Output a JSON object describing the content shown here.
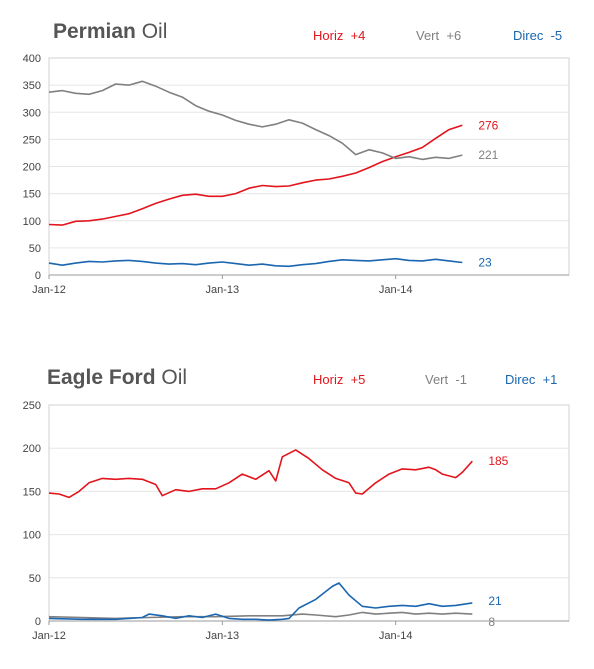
{
  "colors": {
    "horiz": "#e3141c",
    "vert": "#808080",
    "direc": "#1a66b0",
    "grid": "#e6e6e6",
    "axis": "#999999"
  },
  "chart_data": [
    {
      "type": "line",
      "title_bold": "Permian",
      "title_rest": "Oil",
      "legend": [
        {
          "label": "Horiz",
          "change": "+4",
          "color": "#e3141c"
        },
        {
          "label": "Vert",
          "change": "+6",
          "color": "#808080"
        },
        {
          "label": "Direc",
          "change": "-5",
          "color": "#1a66b0"
        }
      ],
      "x_ticks": [
        {
          "label": "Jan-12",
          "x": 0
        },
        {
          "label": "Jan-13",
          "x": 52
        },
        {
          "label": "Jan-14",
          "x": 104
        }
      ],
      "x_range": [
        0,
        156
      ],
      "ylim": [
        0,
        400
      ],
      "y_ticks": [
        0,
        50,
        100,
        150,
        200,
        250,
        300,
        350,
        400
      ],
      "grid": true,
      "series": [
        {
          "name": "Horiz",
          "color": "#e3141c",
          "end_label": "276",
          "points": [
            [
              0,
              93
            ],
            [
              4,
              92
            ],
            [
              8,
              99
            ],
            [
              12,
              100
            ],
            [
              16,
              103
            ],
            [
              20,
              108
            ],
            [
              24,
              113
            ],
            [
              28,
              122
            ],
            [
              32,
              132
            ],
            [
              36,
              140
            ],
            [
              40,
              147
            ],
            [
              44,
              149
            ],
            [
              48,
              145
            ],
            [
              52,
              145
            ],
            [
              56,
              150
            ],
            [
              60,
              160
            ],
            [
              64,
              165
            ],
            [
              68,
              163
            ],
            [
              72,
              164
            ],
            [
              76,
              170
            ],
            [
              80,
              175
            ],
            [
              84,
              177
            ],
            [
              88,
              182
            ],
            [
              92,
              188
            ],
            [
              96,
              198
            ],
            [
              100,
              209
            ],
            [
              104,
              218
            ],
            [
              108,
              226
            ],
            [
              112,
              235
            ],
            [
              116,
              252
            ],
            [
              120,
              268
            ],
            [
              124,
              276
            ]
          ]
        },
        {
          "name": "Vert",
          "color": "#808080",
          "end_label": "221",
          "points": [
            [
              0,
              337
            ],
            [
              4,
              340
            ],
            [
              8,
              335
            ],
            [
              12,
              333
            ],
            [
              16,
              340
            ],
            [
              20,
              352
            ],
            [
              24,
              350
            ],
            [
              28,
              357
            ],
            [
              32,
              348
            ],
            [
              36,
              337
            ],
            [
              40,
              328
            ],
            [
              44,
              312
            ],
            [
              48,
              302
            ],
            [
              52,
              295
            ],
            [
              56,
              285
            ],
            [
              60,
              278
            ],
            [
              64,
              273
            ],
            [
              68,
              278
            ],
            [
              72,
              286
            ],
            [
              76,
              280
            ],
            [
              80,
              268
            ],
            [
              84,
              257
            ],
            [
              88,
              243
            ],
            [
              92,
              222
            ],
            [
              96,
              231
            ],
            [
              100,
              225
            ],
            [
              104,
              215
            ],
            [
              108,
              218
            ],
            [
              112,
              213
            ],
            [
              116,
              217
            ],
            [
              120,
              215
            ],
            [
              124,
              221
            ]
          ]
        },
        {
          "name": "Direc",
          "color": "#1a66b0",
          "end_label": "23",
          "points": [
            [
              0,
              22
            ],
            [
              4,
              18
            ],
            [
              8,
              22
            ],
            [
              12,
              25
            ],
            [
              16,
              24
            ],
            [
              20,
              26
            ],
            [
              24,
              27
            ],
            [
              28,
              25
            ],
            [
              32,
              22
            ],
            [
              36,
              20
            ],
            [
              40,
              21
            ],
            [
              44,
              19
            ],
            [
              48,
              22
            ],
            [
              52,
              24
            ],
            [
              56,
              21
            ],
            [
              60,
              18
            ],
            [
              64,
              20
            ],
            [
              68,
              17
            ],
            [
              72,
              16
            ],
            [
              76,
              19
            ],
            [
              80,
              21
            ],
            [
              84,
              25
            ],
            [
              88,
              28
            ],
            [
              92,
              27
            ],
            [
              96,
              26
            ],
            [
              100,
              28
            ],
            [
              104,
              30
            ],
            [
              108,
              27
            ],
            [
              112,
              26
            ],
            [
              116,
              29
            ],
            [
              120,
              26
            ],
            [
              124,
              23
            ]
          ]
        }
      ]
    },
    {
      "type": "line",
      "title_bold": "Eagle Ford",
      "title_rest": "Oil",
      "legend": [
        {
          "label": "Horiz",
          "change": "+5",
          "color": "#e3141c"
        },
        {
          "label": "Vert",
          "change": "-1",
          "color": "#808080"
        },
        {
          "label": "Direc",
          "change": "+1",
          "color": "#1a66b0"
        }
      ],
      "x_ticks": [
        {
          "label": "Jan-12",
          "x": 0
        },
        {
          "label": "Jan-13",
          "x": 52
        },
        {
          "label": "Jan-14",
          "x": 104
        }
      ],
      "x_range": [
        0,
        156
      ],
      "ylim": [
        0,
        250
      ],
      "y_ticks": [
        0,
        50,
        100,
        150,
        200,
        250
      ],
      "grid": true,
      "series": [
        {
          "name": "Horiz",
          "color": "#e3141c",
          "end_label": "185",
          "points": [
            [
              0,
              148
            ],
            [
              3,
              147
            ],
            [
              6,
              143
            ],
            [
              9,
              150
            ],
            [
              12,
              160
            ],
            [
              16,
              165
            ],
            [
              20,
              164
            ],
            [
              24,
              165
            ],
            [
              28,
              164
            ],
            [
              32,
              158
            ],
            [
              34,
              145
            ],
            [
              38,
              152
            ],
            [
              42,
              150
            ],
            [
              46,
              153
            ],
            [
              50,
              153
            ],
            [
              54,
              160
            ],
            [
              58,
              170
            ],
            [
              62,
              164
            ],
            [
              66,
              174
            ],
            [
              68,
              162
            ],
            [
              70,
              190
            ],
            [
              74,
              198
            ],
            [
              78,
              188
            ],
            [
              82,
              175
            ],
            [
              86,
              165
            ],
            [
              90,
              160
            ],
            [
              92,
              148
            ],
            [
              94,
              147
            ],
            [
              98,
              160
            ],
            [
              102,
              170
            ],
            [
              106,
              176
            ],
            [
              110,
              175
            ],
            [
              114,
              178
            ],
            [
              116,
              175
            ],
            [
              118,
              170
            ],
            [
              122,
              166
            ],
            [
              124,
              172
            ],
            [
              127,
              185
            ]
          ]
        },
        {
          "name": "Vert",
          "color": "#808080",
          "end_label": "8",
          "points": [
            [
              0,
              5
            ],
            [
              10,
              4
            ],
            [
              20,
              3
            ],
            [
              30,
              4
            ],
            [
              40,
              5
            ],
            [
              50,
              5
            ],
            [
              60,
              6
            ],
            [
              70,
              6
            ],
            [
              76,
              8
            ],
            [
              80,
              7
            ],
            [
              86,
              5
            ],
            [
              90,
              7
            ],
            [
              94,
              10
            ],
            [
              98,
              8
            ],
            [
              102,
              9
            ],
            [
              106,
              10
            ],
            [
              110,
              8
            ],
            [
              114,
              9
            ],
            [
              118,
              8
            ],
            [
              122,
              9
            ],
            [
              127,
              8
            ]
          ]
        },
        {
          "name": "Direc",
          "color": "#1a66b0",
          "end_label": "21",
          "points": [
            [
              0,
              3
            ],
            [
              10,
              2
            ],
            [
              20,
              2
            ],
            [
              28,
              4
            ],
            [
              30,
              8
            ],
            [
              34,
              6
            ],
            [
              38,
              3
            ],
            [
              42,
              6
            ],
            [
              46,
              4
            ],
            [
              50,
              8
            ],
            [
              54,
              3
            ],
            [
              58,
              2
            ],
            [
              62,
              2
            ],
            [
              66,
              1
            ],
            [
              70,
              2
            ],
            [
              72,
              3
            ],
            [
              75,
              15
            ],
            [
              80,
              25
            ],
            [
              85,
              40
            ],
            [
              87,
              44
            ],
            [
              90,
              30
            ],
            [
              94,
              17
            ],
            [
              98,
              15
            ],
            [
              102,
              17
            ],
            [
              106,
              18
            ],
            [
              110,
              17
            ],
            [
              114,
              20
            ],
            [
              118,
              17
            ],
            [
              122,
              18
            ],
            [
              127,
              21
            ]
          ]
        }
      ]
    }
  ]
}
